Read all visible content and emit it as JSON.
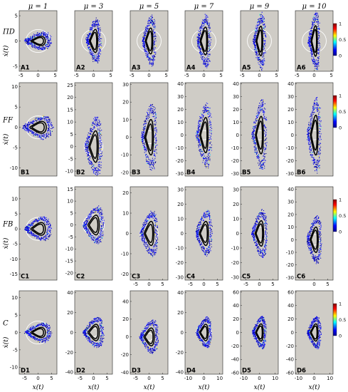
{
  "chart_data": {
    "type": "scatter",
    "column_titles": [
      "μ = 1",
      "μ = 3",
      "μ = 5",
      "μ = 7",
      "μ = 9",
      "μ = 10"
    ],
    "row_labels": [
      "ΠD",
      "FF",
      "FB",
      "C"
    ],
    "ylabel": "ẋ(t)",
    "xlabel": "x(t)",
    "colorbar_ticks": [
      "1",
      "0.5",
      "0"
    ],
    "panel_background": "#cfccc6",
    "colormap": [
      "#00008f",
      "#0000ff",
      "#00ffff",
      "#ffff00",
      "#ff0000",
      "#800000"
    ],
    "rows": [
      {
        "name": "ΠD",
        "panels": [
          {
            "label": "A1",
            "xlim": [
              -5.5,
              5.5
            ],
            "ylim": [
              -6,
              6
            ],
            "xticks": [
              -5,
              0,
              5
            ],
            "yticks": [
              -5,
              0,
              5
            ],
            "amp": 3.5,
            "stretch": 1.0
          },
          {
            "label": "A2",
            "xlim": [
              -5.5,
              5.5
            ],
            "ylim": [
              -6,
              6
            ],
            "xticks": [
              -5,
              0,
              5
            ],
            "yticks": [],
            "amp": 2.0,
            "stretch": 2.5
          },
          {
            "label": "A3",
            "xlim": [
              -5.5,
              5.5
            ],
            "ylim": [
              -6,
              6
            ],
            "xticks": [
              -5,
              0,
              5
            ],
            "yticks": [],
            "amp": 1.8,
            "stretch": 2.8
          },
          {
            "label": "A4",
            "xlim": [
              -5.5,
              5.5
            ],
            "ylim": [
              -6,
              6
            ],
            "xticks": [
              -5,
              0,
              5
            ],
            "yticks": [],
            "amp": 1.8,
            "stretch": 3.0
          },
          {
            "label": "A5",
            "xlim": [
              -5.5,
              5.5
            ],
            "ylim": [
              -6,
              6
            ],
            "xticks": [
              -5,
              0,
              5
            ],
            "yticks": [],
            "amp": 1.6,
            "stretch": 3.2
          },
          {
            "label": "A6",
            "xlim": [
              -5.5,
              5.5
            ],
            "ylim": [
              -6,
              6
            ],
            "xticks": [
              -5,
              0,
              5
            ],
            "yticks": [],
            "amp": 1.5,
            "stretch": 3.3
          }
        ]
      },
      {
        "name": "FF",
        "panels": [
          {
            "label": "B1",
            "xlim": [
              -5.5,
              5.5
            ],
            "ylim": [
              -12,
              11
            ],
            "xticks": [],
            "yticks": [
              -10,
              -5,
              0,
              5,
              10
            ],
            "amp": 4.0,
            "stretch": 1.6
          },
          {
            "label": "B2",
            "xlim": [
              -6,
              6
            ],
            "ylim": [
              -12,
              26
            ],
            "xticks": [],
            "yticks": [
              -10,
              -5,
              0,
              5,
              10,
              15,
              20,
              25
            ],
            "amp": 2.5,
            "stretch": 7.0
          },
          {
            "label": "B3",
            "xlim": [
              -6,
              6
            ],
            "ylim": [
              -22,
              31
            ],
            "xticks": [],
            "yticks": [
              -20,
              -10,
              0,
              10,
              20,
              30
            ],
            "amp": 2.3,
            "stretch": 11.0
          },
          {
            "label": "B4",
            "xlim": [
              -6,
              6
            ],
            "ylim": [
              -32,
              41
            ],
            "xticks": [],
            "yticks": [
              -30,
              -20,
              -10,
              0,
              10,
              20,
              30,
              40
            ],
            "amp": 2.2,
            "stretch": 15.0
          },
          {
            "label": "B5",
            "xlim": [
              -6,
              6
            ],
            "ylim": [
              -32,
              41
            ],
            "xticks": [],
            "yticks": [
              -30,
              -20,
              -10,
              0,
              10,
              20,
              30,
              40
            ],
            "amp": 2.1,
            "stretch": 16.0
          },
          {
            "label": "B6",
            "xlim": [
              -6,
              6
            ],
            "ylim": [
              -32,
              41
            ],
            "xticks": [],
            "yticks": [
              -30,
              -20,
              -10,
              0,
              10,
              20,
              30,
              40
            ],
            "amp": 2.0,
            "stretch": 17.0
          }
        ]
      },
      {
        "name": "FB",
        "panels": [
          {
            "label": "C1",
            "xlim": [
              -7,
              7
            ],
            "ylim": [
              -17,
              14
            ],
            "xticks": [],
            "yticks": [
              -15,
              -10,
              -5,
              0,
              5,
              10
            ],
            "amp": 4.5,
            "stretch": 2.3
          },
          {
            "label": "C2",
            "xlim": [
              -7,
              7
            ],
            "ylim": [
              -23,
              16
            ],
            "xticks": [],
            "yticks": [
              -20,
              -15,
              -10,
              -5,
              0,
              5,
              10,
              15
            ],
            "amp": 3.5,
            "stretch": 4.5
          },
          {
            "label": "C3",
            "xlim": [
              -7,
              7
            ],
            "ylim": [
              -23,
              23
            ],
            "xticks": [
              -5,
              0,
              5
            ],
            "yticks": [
              -20,
              -10,
              0,
              10,
              20
            ],
            "amp": 3.0,
            "stretch": 6.5
          },
          {
            "label": "C4",
            "xlim": [
              -7,
              7
            ],
            "ylim": [
              -32,
              32
            ],
            "xticks": [
              -5,
              0,
              5
            ],
            "yticks": [
              -30,
              -20,
              -10,
              0,
              10,
              20,
              30
            ],
            "amp": 2.8,
            "stretch": 9.0
          },
          {
            "label": "C5",
            "xlim": [
              -7,
              7
            ],
            "ylim": [
              -32,
              32
            ],
            "xticks": [
              -5,
              0,
              5
            ],
            "yticks": [
              -30,
              -20,
              -10,
              0,
              10,
              20,
              30
            ],
            "amp": 2.6,
            "stretch": 9.5
          },
          {
            "label": "C6",
            "xlim": [
              -7,
              7
            ],
            "ylim": [
              -32,
              42
            ],
            "xticks": [
              0,
              5
            ],
            "yticks": [
              -30,
              -20,
              -10,
              0,
              10,
              20,
              30,
              40
            ],
            "amp": 2.5,
            "stretch": 11.0
          }
        ]
      },
      {
        "name": "C",
        "panels": [
          {
            "label": "D1",
            "xlim": [
              -7,
              7
            ],
            "ylim": [
              -12,
              12
            ],
            "xticks": [
              -5,
              0,
              5
            ],
            "yticks": [
              -10,
              -5,
              0,
              5,
              10
            ],
            "amp": 4.5,
            "stretch": 1.6
          },
          {
            "label": "D2",
            "xlim": [
              -7,
              7
            ],
            "ylim": [
              -42,
              42
            ],
            "xticks": [
              -5,
              0,
              5
            ],
            "yticks": [
              -40,
              -20,
              0,
              20,
              40
            ],
            "amp": 3.5,
            "stretch": 9.0
          },
          {
            "label": "D3",
            "xlim": [
              -7,
              7
            ],
            "ylim": [
              -42,
              52
            ],
            "xticks": [
              -5,
              0,
              5
            ],
            "yticks": [
              -40,
              -20,
              0,
              20,
              40
            ],
            "amp": 3.2,
            "stretch": 11.0
          },
          {
            "label": "D4",
            "xlim": [
              -12,
              12
            ],
            "ylim": [
              -42,
              42
            ],
            "xticks": [
              -10,
              0,
              10
            ],
            "yticks": [
              -40,
              -20,
              0,
              20,
              40
            ],
            "amp": 4.5,
            "stretch": 9.0
          },
          {
            "label": "D5",
            "xlim": [
              -12,
              12
            ],
            "ylim": [
              -62,
              62
            ],
            "xticks": [
              -10,
              0,
              10
            ],
            "yticks": [
              -60,
              -40,
              -20,
              0,
              20,
              40,
              60
            ],
            "amp": 4.0,
            "stretch": 14.0
          },
          {
            "label": "D6",
            "xlim": [
              -12,
              12
            ],
            "ylim": [
              -62,
              62
            ],
            "xticks": [
              -10,
              0,
              10
            ],
            "yticks": [
              -60,
              -40,
              -20,
              0,
              20,
              40,
              60
            ],
            "amp": 4.0,
            "stretch": 14.0
          }
        ]
      }
    ]
  }
}
